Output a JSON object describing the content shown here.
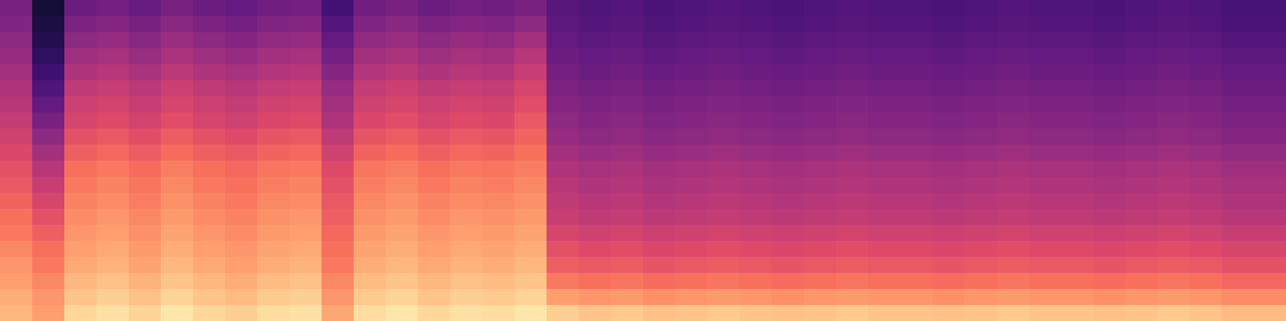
{
  "chart_data": {
    "type": "heatmap",
    "color": "magma",
    "tick_labels": false,
    "zlim": [
      0,
      1
    ],
    "z": [
      [
        0.85,
        0.8,
        0.92,
        0.94,
        0.91,
        0.95,
        0.92,
        0.9,
        0.93,
        0.94,
        0.82,
        0.93,
        0.95,
        0.92,
        0.94,
        0.93,
        0.95,
        0.9,
        0.88,
        0.89,
        0.87,
        0.88,
        0.89,
        0.88,
        0.87,
        0.88,
        0.89,
        0.88,
        0.88,
        0.87,
        0.88,
        0.89,
        0.88,
        0.88,
        0.87,
        0.88,
        0.89,
        0.88,
        0.86,
        0.86
      ],
      [
        0.83,
        0.78,
        0.88,
        0.9,
        0.87,
        0.91,
        0.88,
        0.86,
        0.89,
        0.9,
        0.78,
        0.89,
        0.91,
        0.88,
        0.9,
        0.89,
        0.91,
        0.8,
        0.78,
        0.79,
        0.77,
        0.78,
        0.79,
        0.78,
        0.77,
        0.78,
        0.79,
        0.78,
        0.78,
        0.77,
        0.78,
        0.79,
        0.78,
        0.78,
        0.77,
        0.78,
        0.79,
        0.78,
        0.76,
        0.76
      ],
      [
        0.8,
        0.75,
        0.85,
        0.87,
        0.84,
        0.88,
        0.85,
        0.83,
        0.86,
        0.87,
        0.75,
        0.86,
        0.88,
        0.85,
        0.87,
        0.86,
        0.88,
        0.72,
        0.7,
        0.71,
        0.69,
        0.7,
        0.71,
        0.7,
        0.69,
        0.7,
        0.71,
        0.7,
        0.7,
        0.69,
        0.7,
        0.71,
        0.7,
        0.7,
        0.69,
        0.7,
        0.71,
        0.7,
        0.68,
        0.68
      ],
      [
        0.78,
        0.72,
        0.82,
        0.84,
        0.81,
        0.85,
        0.82,
        0.8,
        0.83,
        0.84,
        0.72,
        0.83,
        0.85,
        0.82,
        0.84,
        0.83,
        0.85,
        0.66,
        0.64,
        0.65,
        0.63,
        0.64,
        0.65,
        0.64,
        0.63,
        0.64,
        0.65,
        0.64,
        0.64,
        0.63,
        0.64,
        0.65,
        0.64,
        0.64,
        0.63,
        0.64,
        0.65,
        0.64,
        0.62,
        0.62
      ],
      [
        0.75,
        0.7,
        0.8,
        0.82,
        0.79,
        0.83,
        0.8,
        0.78,
        0.81,
        0.82,
        0.7,
        0.81,
        0.83,
        0.8,
        0.82,
        0.81,
        0.83,
        0.62,
        0.6,
        0.61,
        0.59,
        0.6,
        0.61,
        0.6,
        0.59,
        0.6,
        0.61,
        0.6,
        0.6,
        0.59,
        0.6,
        0.61,
        0.6,
        0.6,
        0.59,
        0.6,
        0.61,
        0.6,
        0.58,
        0.58
      ],
      [
        0.72,
        0.66,
        0.78,
        0.8,
        0.77,
        0.81,
        0.78,
        0.76,
        0.79,
        0.8,
        0.68,
        0.79,
        0.81,
        0.78,
        0.8,
        0.79,
        0.81,
        0.58,
        0.56,
        0.57,
        0.55,
        0.56,
        0.57,
        0.56,
        0.55,
        0.56,
        0.57,
        0.56,
        0.56,
        0.55,
        0.56,
        0.57,
        0.56,
        0.56,
        0.55,
        0.56,
        0.57,
        0.56,
        0.54,
        0.54
      ],
      [
        0.7,
        0.62,
        0.76,
        0.78,
        0.75,
        0.79,
        0.76,
        0.74,
        0.77,
        0.78,
        0.66,
        0.77,
        0.79,
        0.76,
        0.78,
        0.77,
        0.79,
        0.54,
        0.52,
        0.53,
        0.51,
        0.52,
        0.53,
        0.52,
        0.51,
        0.52,
        0.53,
        0.52,
        0.52,
        0.51,
        0.52,
        0.53,
        0.52,
        0.52,
        0.51,
        0.52,
        0.53,
        0.52,
        0.5,
        0.5
      ],
      [
        0.67,
        0.58,
        0.74,
        0.76,
        0.73,
        0.77,
        0.74,
        0.72,
        0.75,
        0.76,
        0.64,
        0.75,
        0.77,
        0.74,
        0.76,
        0.75,
        0.77,
        0.52,
        0.5,
        0.51,
        0.49,
        0.5,
        0.51,
        0.5,
        0.49,
        0.5,
        0.51,
        0.5,
        0.5,
        0.49,
        0.5,
        0.51,
        0.5,
        0.5,
        0.49,
        0.5,
        0.51,
        0.5,
        0.48,
        0.48
      ],
      [
        0.64,
        0.54,
        0.72,
        0.74,
        0.71,
        0.75,
        0.72,
        0.7,
        0.73,
        0.74,
        0.62,
        0.73,
        0.75,
        0.72,
        0.74,
        0.73,
        0.75,
        0.5,
        0.48,
        0.49,
        0.47,
        0.48,
        0.49,
        0.48,
        0.47,
        0.48,
        0.49,
        0.48,
        0.48,
        0.47,
        0.48,
        0.49,
        0.48,
        0.48,
        0.47,
        0.48,
        0.49,
        0.48,
        0.46,
        0.46
      ],
      [
        0.62,
        0.5,
        0.7,
        0.72,
        0.69,
        0.73,
        0.7,
        0.68,
        0.71,
        0.72,
        0.6,
        0.71,
        0.73,
        0.7,
        0.72,
        0.71,
        0.73,
        0.48,
        0.46,
        0.47,
        0.45,
        0.46,
        0.47,
        0.46,
        0.45,
        0.46,
        0.47,
        0.46,
        0.46,
        0.45,
        0.46,
        0.47,
        0.46,
        0.46,
        0.45,
        0.46,
        0.47,
        0.46,
        0.44,
        0.44
      ],
      [
        0.59,
        0.45,
        0.66,
        0.68,
        0.65,
        0.69,
        0.66,
        0.64,
        0.67,
        0.68,
        0.56,
        0.67,
        0.69,
        0.66,
        0.68,
        0.67,
        0.7,
        0.45,
        0.43,
        0.44,
        0.42,
        0.43,
        0.44,
        0.43,
        0.42,
        0.43,
        0.44,
        0.43,
        0.43,
        0.42,
        0.43,
        0.44,
        0.43,
        0.43,
        0.42,
        0.43,
        0.44,
        0.43,
        0.41,
        0.41
      ],
      [
        0.56,
        0.4,
        0.62,
        0.64,
        0.61,
        0.65,
        0.62,
        0.6,
        0.63,
        0.64,
        0.52,
        0.63,
        0.65,
        0.62,
        0.64,
        0.63,
        0.67,
        0.42,
        0.4,
        0.41,
        0.39,
        0.4,
        0.41,
        0.4,
        0.39,
        0.4,
        0.41,
        0.4,
        0.4,
        0.39,
        0.4,
        0.41,
        0.4,
        0.4,
        0.39,
        0.4,
        0.41,
        0.4,
        0.38,
        0.38
      ],
      [
        0.53,
        0.35,
        0.58,
        0.6,
        0.57,
        0.61,
        0.58,
        0.56,
        0.59,
        0.6,
        0.48,
        0.59,
        0.61,
        0.58,
        0.6,
        0.59,
        0.64,
        0.4,
        0.38,
        0.39,
        0.37,
        0.38,
        0.39,
        0.38,
        0.37,
        0.38,
        0.39,
        0.38,
        0.38,
        0.37,
        0.38,
        0.39,
        0.38,
        0.38,
        0.37,
        0.38,
        0.39,
        0.38,
        0.36,
        0.36
      ],
      [
        0.5,
        0.3,
        0.55,
        0.57,
        0.54,
        0.58,
        0.55,
        0.53,
        0.56,
        0.57,
        0.45,
        0.56,
        0.58,
        0.55,
        0.57,
        0.56,
        0.61,
        0.38,
        0.36,
        0.37,
        0.35,
        0.36,
        0.37,
        0.36,
        0.35,
        0.36,
        0.37,
        0.36,
        0.36,
        0.35,
        0.36,
        0.37,
        0.36,
        0.36,
        0.35,
        0.36,
        0.37,
        0.36,
        0.34,
        0.34
      ],
      [
        0.48,
        0.25,
        0.52,
        0.54,
        0.51,
        0.55,
        0.52,
        0.5,
        0.53,
        0.54,
        0.42,
        0.53,
        0.55,
        0.52,
        0.54,
        0.53,
        0.58,
        0.36,
        0.34,
        0.35,
        0.33,
        0.34,
        0.35,
        0.34,
        0.33,
        0.34,
        0.35,
        0.34,
        0.34,
        0.33,
        0.34,
        0.35,
        0.34,
        0.34,
        0.33,
        0.34,
        0.35,
        0.34,
        0.32,
        0.32
      ],
      [
        0.45,
        0.21,
        0.48,
        0.5,
        0.47,
        0.51,
        0.48,
        0.46,
        0.49,
        0.5,
        0.38,
        0.49,
        0.51,
        0.48,
        0.5,
        0.49,
        0.54,
        0.34,
        0.32,
        0.33,
        0.31,
        0.32,
        0.33,
        0.32,
        0.31,
        0.32,
        0.33,
        0.32,
        0.32,
        0.31,
        0.32,
        0.33,
        0.32,
        0.32,
        0.31,
        0.32,
        0.33,
        0.32,
        0.3,
        0.3
      ],
      [
        0.42,
        0.17,
        0.44,
        0.46,
        0.43,
        0.47,
        0.44,
        0.42,
        0.45,
        0.46,
        0.34,
        0.45,
        0.47,
        0.44,
        0.46,
        0.45,
        0.5,
        0.32,
        0.3,
        0.31,
        0.29,
        0.3,
        0.31,
        0.3,
        0.29,
        0.3,
        0.31,
        0.3,
        0.3,
        0.29,
        0.3,
        0.31,
        0.3,
        0.3,
        0.29,
        0.3,
        0.31,
        0.3,
        0.28,
        0.28
      ],
      [
        0.4,
        0.14,
        0.4,
        0.42,
        0.39,
        0.43,
        0.4,
        0.38,
        0.41,
        0.42,
        0.3,
        0.41,
        0.43,
        0.4,
        0.42,
        0.41,
        0.45,
        0.3,
        0.28,
        0.29,
        0.27,
        0.28,
        0.29,
        0.28,
        0.27,
        0.28,
        0.29,
        0.28,
        0.28,
        0.27,
        0.28,
        0.29,
        0.28,
        0.28,
        0.27,
        0.28,
        0.29,
        0.28,
        0.26,
        0.26
      ],
      [
        0.37,
        0.12,
        0.36,
        0.38,
        0.35,
        0.39,
        0.36,
        0.34,
        0.37,
        0.38,
        0.26,
        0.37,
        0.39,
        0.36,
        0.38,
        0.37,
        0.4,
        0.28,
        0.26,
        0.27,
        0.25,
        0.26,
        0.27,
        0.26,
        0.25,
        0.26,
        0.27,
        0.26,
        0.26,
        0.25,
        0.26,
        0.27,
        0.26,
        0.26,
        0.25,
        0.26,
        0.27,
        0.26,
        0.24,
        0.24
      ],
      [
        0.35,
        0.1,
        0.32,
        0.34,
        0.31,
        0.35,
        0.32,
        0.3,
        0.33,
        0.34,
        0.22,
        0.33,
        0.35,
        0.32,
        0.34,
        0.33,
        0.35,
        0.27,
        0.25,
        0.26,
        0.24,
        0.25,
        0.26,
        0.25,
        0.24,
        0.25,
        0.26,
        0.25,
        0.25,
        0.24,
        0.25,
        0.26,
        0.25,
        0.25,
        0.24,
        0.25,
        0.26,
        0.25,
        0.23,
        0.23
      ]
    ]
  }
}
